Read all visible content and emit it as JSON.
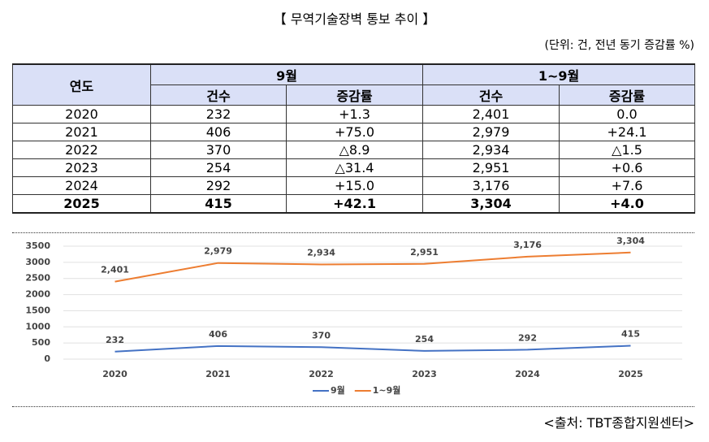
{
  "header": {
    "title": "【 무역기술장벽 통보 추이 】",
    "unit": "(단위: 건, 전년 동기 증감률 %)"
  },
  "table": {
    "header_row1": [
      "연도",
      "9월",
      "1~9월"
    ],
    "header_row2": [
      "건수",
      "증감률",
      "건수",
      "증감률"
    ],
    "rows": [
      [
        "2020",
        "232",
        "+1.3",
        "2,401",
        "0.0"
      ],
      [
        "2021",
        "406",
        "+75.0",
        "2,979",
        "+24.1"
      ],
      [
        "2022",
        "370",
        "△8.9",
        "2,934",
        "△1.5"
      ],
      [
        "2023",
        "254",
        "△31.4",
        "2,951",
        "+0.6"
      ],
      [
        "2024",
        "292",
        "+15.0",
        "3,176",
        "+7.6"
      ],
      [
        "2025",
        "415",
        "+42.1",
        "3,304",
        "+4.0"
      ]
    ]
  },
  "chart_data": {
    "type": "line",
    "categories": [
      "2020",
      "2021",
      "2022",
      "2023",
      "2024",
      "2025"
    ],
    "series": [
      {
        "name": "9월",
        "color": "#4472c4",
        "values": [
          232,
          406,
          370,
          254,
          292,
          415
        ],
        "value_labels": [
          "232",
          "406",
          "370",
          "254",
          "292",
          "415"
        ]
      },
      {
        "name": "1~9월",
        "color": "#ed7d31",
        "values": [
          2401,
          2979,
          2934,
          2951,
          3176,
          3304
        ],
        "value_labels": [
          "2,401",
          "2,979",
          "2,934",
          "2,951",
          "3,176",
          "3,304"
        ]
      }
    ],
    "ylim": [
      0,
      3500
    ],
    "yticks": [
      0,
      500,
      1000,
      1500,
      2000,
      2500,
      3000,
      3500
    ],
    "grid": true,
    "legend": "bottom"
  },
  "source": "<출처: TBT종합지원센터>"
}
